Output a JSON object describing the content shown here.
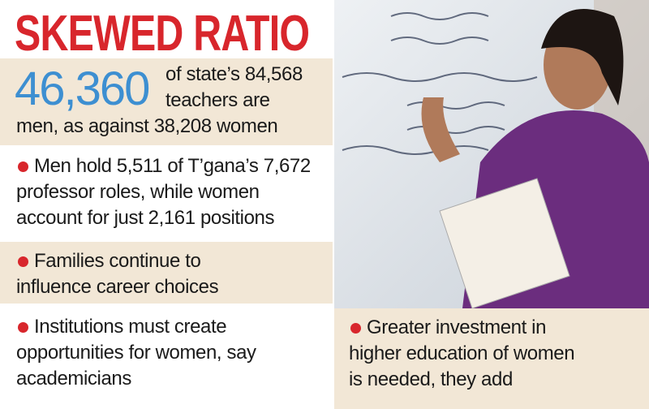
{
  "header": {
    "title": "SKEWED RATIO"
  },
  "stat": {
    "number": "46,360",
    "lines": [
      "of state’s 84,568",
      "teachers are",
      "men, as against 38,208 women"
    ]
  },
  "bullets": [
    {
      "lines": [
        "Men hold 5,511 of T’gana’s 7,672",
        "professor roles, while women",
        "account for just 2,161 positions"
      ]
    },
    {
      "lines": [
        "Families continue to",
        "influence career choices"
      ]
    },
    {
      "lines": [
        "Institutions must create",
        "opportunities for women, say",
        "academicians"
      ]
    },
    {
      "lines": [
        "Greater investment in",
        "higher education of women",
        "is needed, they add"
      ]
    }
  ]
}
